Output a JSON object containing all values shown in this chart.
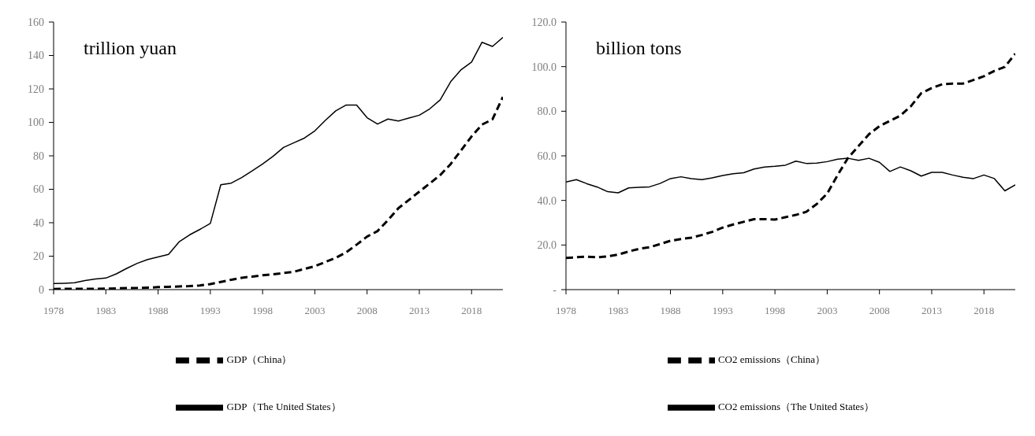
{
  "chart_data": [
    {
      "type": "line",
      "ylabel": "trillion yuan",
      "categories": [
        "1978",
        null,
        null,
        null,
        null,
        "1983",
        null,
        null,
        null,
        null,
        "1988",
        null,
        null,
        null,
        null,
        "1993",
        null,
        null,
        null,
        null,
        "1998",
        null,
        null,
        null,
        null,
        "2003",
        null,
        null,
        null,
        null,
        "2008",
        null,
        null,
        null,
        null,
        "2013",
        null,
        null,
        null,
        null,
        "2018",
        null,
        null,
        null
      ],
      "series": [
        {
          "name": "GDP（The United States）",
          "color": "#000000",
          "line_style": "solid",
          "values": [
            3.6,
            3.8,
            4.1,
            5.4,
            6.3,
            6.9,
            9.4,
            12.7,
            15.7,
            18.0,
            19.5,
            21.1,
            28.5,
            32.7,
            36.0,
            39.6,
            62.7,
            63.7,
            67.0,
            71.0,
            75.1,
            79.7,
            85.0,
            87.8,
            90.6,
            94.9,
            101.2,
            106.9,
            110.4,
            110.4,
            102.8,
            99.0,
            102.0,
            100.8,
            102.6,
            104.3,
            108.1,
            113.5,
            124.3,
            131.5,
            136.1,
            147.9,
            145.4,
            150.8
          ]
        },
        {
          "name": "GDP（China）",
          "color": "#000000",
          "line_style": "dashed",
          "values": [
            0.4,
            0.5,
            0.5,
            0.5,
            0.5,
            0.6,
            0.7,
            0.9,
            1.0,
            1.2,
            1.5,
            1.7,
            1.9,
            2.1,
            2.5,
            3.3,
            4.6,
            5.9,
            7.1,
            7.8,
            8.6,
            9.1,
            9.9,
            10.7,
            12.4,
            14.0,
            16.5,
            19.0,
            22.3,
            26.9,
            31.7,
            35.0,
            41.6,
            48.7,
            53.6,
            58.6,
            63.5,
            68.5,
            75.1,
            83.3,
            91.6,
            98.7,
            101.8,
            115.2
          ]
        }
      ],
      "ylim": [
        0,
        160
      ],
      "yticks": [
        0,
        20,
        40,
        60,
        80,
        100,
        120,
        140,
        160
      ],
      "grid": false,
      "legend": "bottom",
      "marker": "none"
    },
    {
      "type": "line",
      "ylabel": "billion tons",
      "categories": [
        "1978",
        null,
        null,
        null,
        null,
        "1983",
        null,
        null,
        null,
        null,
        "1988",
        null,
        null,
        null,
        null,
        "1993",
        null,
        null,
        null,
        null,
        "1998",
        null,
        null,
        null,
        null,
        "2003",
        null,
        null,
        null,
        null,
        "2008",
        null,
        null,
        null,
        null,
        "2013",
        null,
        null,
        null,
        null,
        "2018",
        null,
        null,
        null
      ],
      "series": [
        {
          "name": "CO2 emissions（The United States）",
          "color": "#000000",
          "line_style": "solid",
          "values": [
            48.3,
            49.3,
            47.5,
            46.0,
            43.9,
            43.4,
            45.6,
            45.9,
            46.1,
            47.6,
            49.8,
            50.6,
            49.8,
            49.3,
            50.1,
            51.2,
            52.0,
            52.4,
            54.1,
            55.0,
            55.3,
            55.8,
            57.6,
            56.6,
            56.7,
            57.4,
            58.5,
            58.9,
            58.0,
            58.9,
            57.1,
            53.0,
            55.0,
            53.3,
            50.9,
            52.6,
            52.6,
            51.4,
            50.4,
            49.8,
            51.4,
            49.8,
            44.3,
            47.0
          ]
        },
        {
          "name": "CO2 emissions（China）",
          "color": "#000000",
          "line_style": "dashed",
          "values": [
            14.2,
            14.5,
            14.8,
            14.5,
            14.9,
            15.7,
            17.1,
            18.3,
            19.0,
            20.4,
            21.9,
            22.7,
            23.3,
            24.5,
            25.9,
            27.8,
            29.2,
            30.4,
            31.6,
            31.6,
            31.4,
            32.5,
            33.5,
            34.9,
            38.4,
            43.1,
            51.4,
            59.1,
            64.4,
            69.7,
            73.3,
            75.7,
            78.0,
            82.2,
            88.1,
            90.4,
            92.1,
            92.4,
            92.4,
            94.0,
            95.7,
            98.1,
            99.9,
            105.8
          ]
        }
      ],
      "ylim": [
        0,
        120
      ],
      "yticks": [
        {
          "value": 0,
          "label": "-"
        },
        {
          "value": 20,
          "label": "20.0"
        },
        {
          "value": 40,
          "label": "40.0"
        },
        {
          "value": 60,
          "label": "60.0"
        },
        {
          "value": 80,
          "label": "80.0"
        },
        {
          "value": 100,
          "label": "100.0"
        },
        {
          "value": 120,
          "label": "120.0"
        }
      ],
      "grid": false,
      "legend": "bottom",
      "marker": "none"
    }
  ]
}
